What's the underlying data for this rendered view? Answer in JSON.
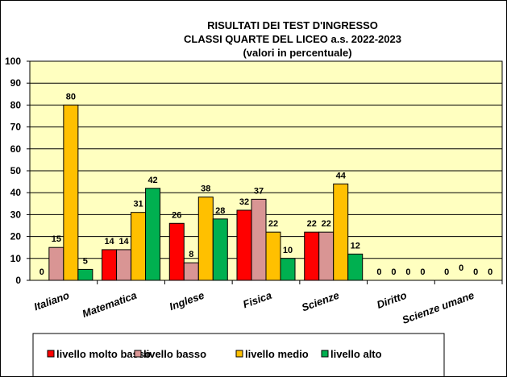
{
  "chart_data": {
    "type": "bar",
    "title": [
      "RISULTATI DEI TEST D'INGRESSO",
      "CLASSI QUARTE DEL LICEO     a.s. 2022-2023",
      "(valori in percentuale)"
    ],
    "categories": [
      "Italiano",
      "Matematica",
      "Inglese",
      "Fisica",
      "Scienze",
      "Diritto",
      "Scienze umane"
    ],
    "series": [
      {
        "name": "livello molto  basso",
        "color": "#ff0000",
        "values": [
          0,
          14,
          26,
          32,
          22,
          0,
          0
        ]
      },
      {
        "name": "livello basso",
        "color": "#d99594",
        "values": [
          15,
          14,
          8,
          37,
          22,
          0,
          0
        ]
      },
      {
        "name": "livello medio",
        "color": "#ffc000",
        "values": [
          80,
          31,
          38,
          22,
          44,
          0,
          0
        ]
      },
      {
        "name": "livello alto",
        "color": "#00b050",
        "values": [
          5,
          42,
          28,
          10,
          12,
          0,
          0
        ]
      }
    ],
    "ylim": [
      0,
      100
    ],
    "yticks": [
      0,
      10,
      20,
      30,
      40,
      50,
      60,
      70,
      80,
      90,
      100
    ],
    "grid": true,
    "plot_background": "#ffffc0",
    "legend": "bottom",
    "xlabel": "",
    "ylabel": ""
  }
}
